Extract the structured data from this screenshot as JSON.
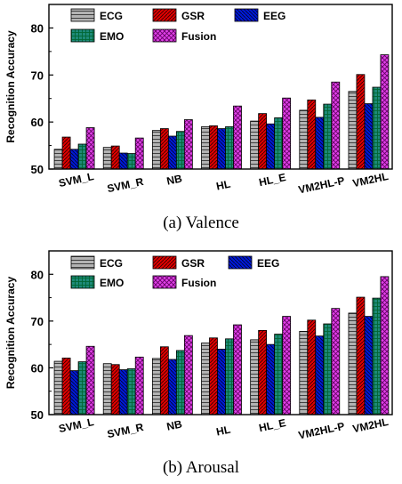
{
  "colors": {
    "ECG": "#b3b3b3",
    "GSR": "#e00000",
    "EEG": "#0018d8",
    "EMO": "#1e8a78",
    "Fusion": "#e040e8"
  },
  "chart_data": [
    {
      "type": "bar",
      "caption": "(a)  Valence",
      "ylabel": "Recognition Accuracy",
      "ylim": [
        50,
        85
      ],
      "yticks": [
        50,
        60,
        70,
        80
      ],
      "categories": [
        "SVM_L",
        "SVM_R",
        "NB",
        "HL",
        "HL_E",
        "VM2HL-P",
        "VM2HL"
      ],
      "series": [
        {
          "name": "ECG",
          "values": [
            54.2,
            54.6,
            58.2,
            59.0,
            60.2,
            62.5,
            66.5
          ]
        },
        {
          "name": "GSR",
          "values": [
            56.8,
            54.9,
            58.6,
            59.2,
            61.8,
            64.7,
            70.1
          ]
        },
        {
          "name": "EEG",
          "values": [
            54.2,
            53.4,
            57.0,
            58.6,
            59.6,
            61.0,
            63.9
          ]
        },
        {
          "name": "EMO",
          "values": [
            55.3,
            53.3,
            58.0,
            59.0,
            60.9,
            63.8,
            67.4
          ]
        },
        {
          "name": "Fusion",
          "values": [
            58.8,
            56.6,
            60.5,
            63.4,
            65.1,
            68.5,
            74.3
          ]
        }
      ]
    },
    {
      "type": "bar",
      "caption": "(b)  Arousal",
      "ylabel": "Recognition Accuracy",
      "ylim": [
        50,
        85
      ],
      "yticks": [
        50,
        60,
        70,
        80
      ],
      "categories": [
        "SVM_L",
        "SVM_R",
        "NB",
        "HL",
        "HL_E",
        "VM2HL-P",
        "VM2HL"
      ],
      "series": [
        {
          "name": "ECG",
          "values": [
            61.4,
            60.9,
            62.0,
            65.3,
            66.0,
            67.8,
            71.7
          ]
        },
        {
          "name": "GSR",
          "values": [
            62.1,
            60.7,
            64.5,
            66.4,
            68.0,
            70.2,
            75.1
          ]
        },
        {
          "name": "EEG",
          "values": [
            59.4,
            59.6,
            61.8,
            64.0,
            65.0,
            66.8,
            71.0
          ]
        },
        {
          "name": "EMO",
          "values": [
            61.3,
            59.8,
            63.7,
            66.2,
            67.2,
            69.4,
            74.9
          ]
        },
        {
          "name": "Fusion",
          "values": [
            64.6,
            62.3,
            66.9,
            69.2,
            71.0,
            72.7,
            79.5
          ]
        }
      ]
    }
  ]
}
